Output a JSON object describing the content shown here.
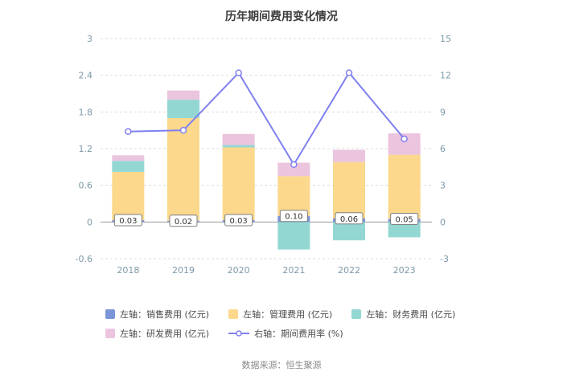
{
  "chart_data": {
    "type": "bar",
    "subtype": "stacked-bar-with-line-dual-axis",
    "title": "历年期间费用变化情况",
    "source": "数据来源：恒生聚源",
    "categories": [
      "2018",
      "2019",
      "2020",
      "2021",
      "2022",
      "2023"
    ],
    "left_axis": {
      "label": "亿元",
      "min": -0.6,
      "max": 3,
      "ticks": [
        3,
        2.4,
        1.8,
        1.2,
        0.6,
        0,
        -0.6
      ]
    },
    "right_axis": {
      "label": "%",
      "min": -3,
      "max": 15,
      "ticks": [
        15,
        12,
        9,
        6,
        3,
        0,
        -3
      ]
    },
    "series": [
      {
        "name": "左轴：销售费用 (亿元)",
        "type": "bar",
        "color": "#7b95d8",
        "values": [
          0.03,
          0.02,
          0.03,
          0.1,
          0.06,
          0.05
        ],
        "labels": [
          "0.03",
          "0.02",
          "0.03",
          "0.10",
          "0.06",
          "0.05"
        ]
      },
      {
        "name": "左轴：管理费用 (亿元)",
        "type": "bar",
        "color": "#fbd88c",
        "values": [
          0.79,
          1.68,
          1.19,
          0.65,
          0.92,
          1.05
        ]
      },
      {
        "name": "左轴：财务费用 (亿元)",
        "type": "bar",
        "color": "#93d7d3",
        "values": [
          0.18,
          0.3,
          0.04,
          -0.45,
          -0.3,
          -0.25
        ]
      },
      {
        "name": "左轴：研发费用 (亿元)",
        "type": "bar",
        "color": "#ebc4de",
        "values": [
          0.09,
          0.15,
          0.18,
          0.22,
          0.2,
          0.35
        ]
      },
      {
        "name": "右轴：期间费用率 (%)",
        "type": "line",
        "color": "#8080f0",
        "values": [
          7.4,
          7.5,
          12.2,
          4.7,
          12.2,
          6.8
        ]
      }
    ],
    "colors": {
      "grid": "#dcdcdc",
      "zero_line": "#999999",
      "axis_text": "#7d99a8",
      "label_box_border": "#7f7f7f",
      "label_text": "#333333",
      "title_text": "#3d3d3d"
    }
  }
}
